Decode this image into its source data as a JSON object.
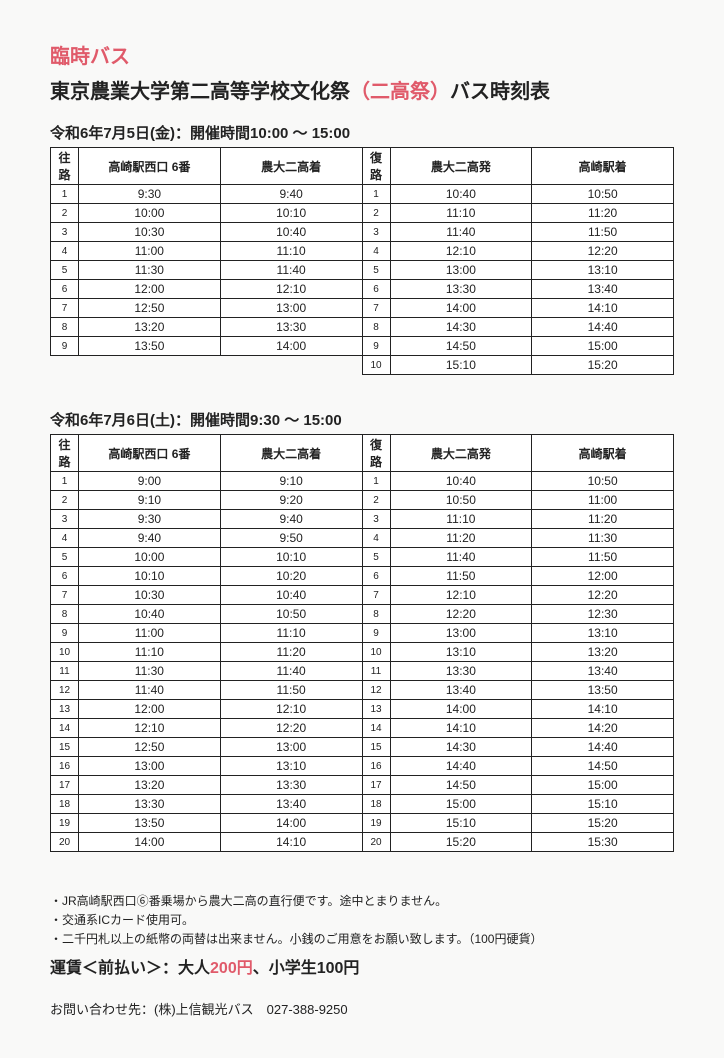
{
  "header": {
    "line1": "臨時バス",
    "line2_pre": "東京農業大学第二高等学校文化祭",
    "line2_accent": "（二高祭）",
    "line2_post": "バス時刻表"
  },
  "day1": {
    "title": "令和6年7月5日(金)：開催時間10:00 ～ 15:00",
    "outbound_hdr_idx": "往路",
    "outbound_hdr_a": "高崎駅西口 6番",
    "outbound_hdr_b": "農大二高着",
    "return_hdr_idx": "復路",
    "return_hdr_a": "農大二高発",
    "return_hdr_b": "高崎駅着",
    "outbound": [
      [
        "1",
        "9:30",
        "9:40"
      ],
      [
        "2",
        "10:00",
        "10:10"
      ],
      [
        "3",
        "10:30",
        "10:40"
      ],
      [
        "4",
        "11:00",
        "11:10"
      ],
      [
        "5",
        "11:30",
        "11:40"
      ],
      [
        "6",
        "12:00",
        "12:10"
      ],
      [
        "7",
        "12:50",
        "13:00"
      ],
      [
        "8",
        "13:20",
        "13:30"
      ],
      [
        "9",
        "13:50",
        "14:00"
      ]
    ],
    "return": [
      [
        "1",
        "10:40",
        "10:50"
      ],
      [
        "2",
        "11:10",
        "11:20"
      ],
      [
        "3",
        "11:40",
        "11:50"
      ],
      [
        "4",
        "12:10",
        "12:20"
      ],
      [
        "5",
        "13:00",
        "13:10"
      ],
      [
        "6",
        "13:30",
        "13:40"
      ],
      [
        "7",
        "14:00",
        "14:10"
      ],
      [
        "8",
        "14:30",
        "14:40"
      ],
      [
        "9",
        "14:50",
        "15:00"
      ],
      [
        "10",
        "15:10",
        "15:20"
      ]
    ]
  },
  "day2": {
    "title": "令和6年7月6日(土)：開催時間9:30 ～ 15:00",
    "outbound_hdr_idx": "往路",
    "outbound_hdr_a": "高崎駅西口 6番",
    "outbound_hdr_b": "農大二高着",
    "return_hdr_idx": "復路",
    "return_hdr_a": "農大二高発",
    "return_hdr_b": "高崎駅着",
    "outbound": [
      [
        "1",
        "9:00",
        "9:10"
      ],
      [
        "2",
        "9:10",
        "9:20"
      ],
      [
        "3",
        "9:30",
        "9:40"
      ],
      [
        "4",
        "9:40",
        "9:50"
      ],
      [
        "5",
        "10:00",
        "10:10"
      ],
      [
        "6",
        "10:10",
        "10:20"
      ],
      [
        "7",
        "10:30",
        "10:40"
      ],
      [
        "8",
        "10:40",
        "10:50"
      ],
      [
        "9",
        "11:00",
        "11:10"
      ],
      [
        "10",
        "11:10",
        "11:20"
      ],
      [
        "11",
        "11:30",
        "11:40"
      ],
      [
        "12",
        "11:40",
        "11:50"
      ],
      [
        "13",
        "12:00",
        "12:10"
      ],
      [
        "14",
        "12:10",
        "12:20"
      ],
      [
        "15",
        "12:50",
        "13:00"
      ],
      [
        "16",
        "13:00",
        "13:10"
      ],
      [
        "17",
        "13:20",
        "13:30"
      ],
      [
        "18",
        "13:30",
        "13:40"
      ],
      [
        "19",
        "13:50",
        "14:00"
      ],
      [
        "20",
        "14:00",
        "14:10"
      ]
    ],
    "return": [
      [
        "1",
        "10:40",
        "10:50"
      ],
      [
        "2",
        "10:50",
        "11:00"
      ],
      [
        "3",
        "11:10",
        "11:20"
      ],
      [
        "4",
        "11:20",
        "11:30"
      ],
      [
        "5",
        "11:40",
        "11:50"
      ],
      [
        "6",
        "11:50",
        "12:00"
      ],
      [
        "7",
        "12:10",
        "12:20"
      ],
      [
        "8",
        "12:20",
        "12:30"
      ],
      [
        "9",
        "13:00",
        "13:10"
      ],
      [
        "10",
        "13:10",
        "13:20"
      ],
      [
        "11",
        "13:30",
        "13:40"
      ],
      [
        "12",
        "13:40",
        "13:50"
      ],
      [
        "13",
        "14:00",
        "14:10"
      ],
      [
        "14",
        "14:10",
        "14:20"
      ],
      [
        "15",
        "14:30",
        "14:40"
      ],
      [
        "16",
        "14:40",
        "14:50"
      ],
      [
        "17",
        "14:50",
        "15:00"
      ],
      [
        "18",
        "15:00",
        "15:10"
      ],
      [
        "19",
        "15:10",
        "15:20"
      ],
      [
        "20",
        "15:20",
        "15:30"
      ]
    ]
  },
  "notes": {
    "n1": "・JR高崎駅西口⑥番乗場から農大二高の直行便です。途中とまりません。",
    "n2": "・交通系ICカード使用可。",
    "n3": "・二千円札以上の紙幣の両替は出来ません。小銭のご用意をお願い致します。（100円硬貨）"
  },
  "fare": {
    "pre": "運賃＜前払い＞：大人",
    "accent": "200円",
    "post": "、小学生100円"
  },
  "contact": "お問い合わせ先：(株)上信観光バス　027-388-9250"
}
